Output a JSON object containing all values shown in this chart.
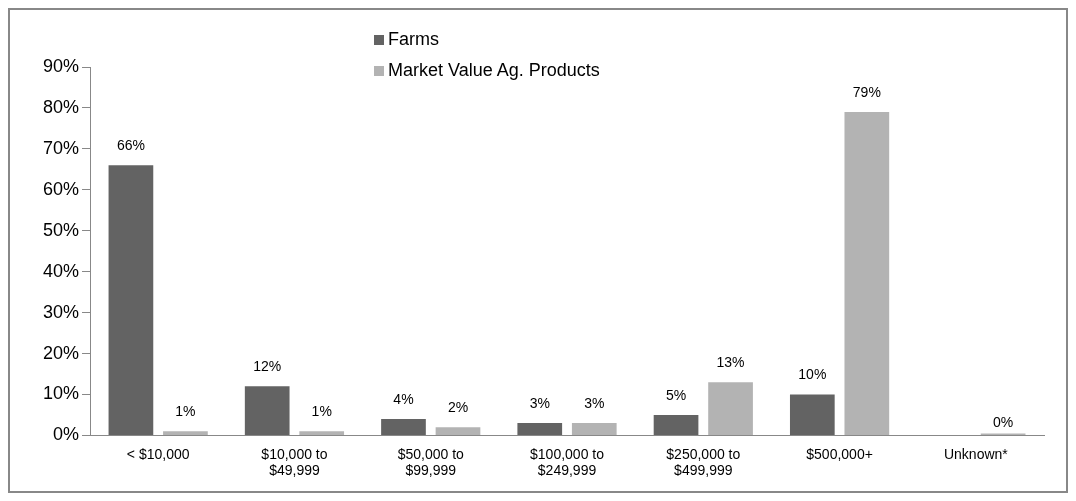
{
  "chart_data": {
    "type": "bar",
    "categories": [
      "< $10,000",
      "$10,000 to\n$49,999",
      "$50,000 to\n$99,999",
      "$100,000 to\n$249,999",
      "$250,000 to\n$499,999",
      "$500,000+",
      "Unknown*"
    ],
    "series": [
      {
        "name": "Farms",
        "color": "#636363",
        "values": [
          66,
          12,
          4,
          3,
          5,
          10,
          null
        ],
        "value_labels": [
          "66%",
          "12%",
          "4%",
          "3%",
          "5%",
          "10%",
          null
        ]
      },
      {
        "name": "Market Value Ag. Products",
        "color": "#b3b3b3",
        "values": [
          1,
          1,
          2,
          3,
          13,
          79,
          0
        ],
        "value_labels": [
          "1%",
          "1%",
          "2%",
          "3%",
          "13%",
          "79%",
          "0%"
        ]
      }
    ],
    "ylim": [
      0,
      90
    ],
    "yticks": [
      {
        "value": 0,
        "label": "0%"
      },
      {
        "value": 10,
        "label": "10%"
      },
      {
        "value": 20,
        "label": "20%"
      },
      {
        "value": 30,
        "label": "30%"
      },
      {
        "value": 40,
        "label": "40%"
      },
      {
        "value": 50,
        "label": "50%"
      },
      {
        "value": 60,
        "label": "60%"
      },
      {
        "value": 70,
        "label": "70%"
      },
      {
        "value": 80,
        "label": "80%"
      },
      {
        "value": 90,
        "label": "90%"
      }
    ],
    "grid": false,
    "legend": "top"
  }
}
